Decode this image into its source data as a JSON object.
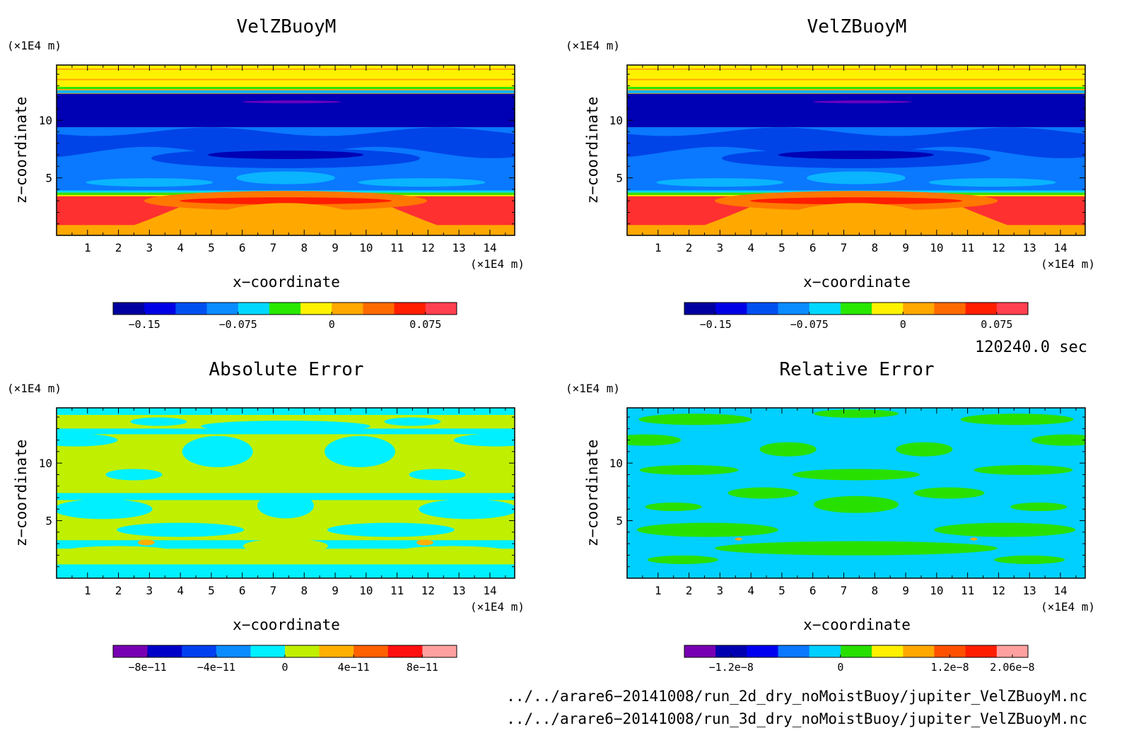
{
  "panels": [
    {
      "id": "p1",
      "title": "VelZBuoyM",
      "kind": "field",
      "z_unit": "(×1E4 m)",
      "x_unit": "(×1E4 m)",
      "xlabel": "x−coordinate",
      "ylabel": "z−coordinate",
      "x_ticks": [
        "1",
        "2",
        "3",
        "4",
        "5",
        "6",
        "7",
        "8",
        "9",
        "10",
        "11",
        "12",
        "13",
        "14"
      ],
      "z_ticks": [
        "5",
        "10"
      ],
      "colorbar": {
        "colors": [
          "#0000a0",
          "#0000e6",
          "#0050f0",
          "#0a8cff",
          "#00d8ff",
          "#28e800",
          "#fff200",
          "#ffa800",
          "#ff6a00",
          "#ff1e00",
          "#ff4050"
        ],
        "labels": [
          "−0.15",
          "−0.075",
          "0",
          "0.075"
        ]
      }
    },
    {
      "id": "p2",
      "title": "VelZBuoyM",
      "kind": "field",
      "z_unit": "(×1E4 m)",
      "x_unit": "(×1E4 m)",
      "xlabel": "x−coordinate",
      "ylabel": "z−coordinate",
      "x_ticks": [
        "1",
        "2",
        "3",
        "4",
        "5",
        "6",
        "7",
        "8",
        "9",
        "10",
        "11",
        "12",
        "13",
        "14"
      ],
      "z_ticks": [
        "5",
        "10"
      ],
      "colorbar": {
        "colors": [
          "#0000a0",
          "#0000e6",
          "#0050f0",
          "#0a8cff",
          "#00d8ff",
          "#28e800",
          "#fff200",
          "#ffa800",
          "#ff6a00",
          "#ff1e00",
          "#ff4050"
        ],
        "labels": [
          "−0.15",
          "−0.075",
          "0",
          "0.075"
        ]
      }
    },
    {
      "id": "p3",
      "title": "Absolute Error",
      "kind": "abs",
      "z_unit": "(×1E4 m)",
      "x_unit": "(×1E4 m)",
      "xlabel": "x−coordinate",
      "ylabel": "z−coordinate",
      "x_ticks": [
        "1",
        "2",
        "3",
        "4",
        "5",
        "6",
        "7",
        "8",
        "9",
        "10",
        "11",
        "12",
        "13",
        "14"
      ],
      "z_ticks": [
        "5",
        "10"
      ],
      "colorbar": {
        "colors": [
          "#7800b4",
          "#0000c8",
          "#0040f0",
          "#0a8cff",
          "#00f0ff",
          "#c0f000",
          "#ffb000",
          "#ff6000",
          "#ff1010",
          "#ffa0a0"
        ],
        "labels": [
          "−8e−11",
          "−4e−11",
          "0",
          "4e−11",
          "8e−11"
        ]
      }
    },
    {
      "id": "p4",
      "title": "Relative Error",
      "kind": "rel",
      "z_unit": "(×1E4 m)",
      "x_unit": "(×1E4 m)",
      "xlabel": "x−coordinate",
      "ylabel": "z−coordinate",
      "x_ticks": [
        "1",
        "2",
        "3",
        "4",
        "5",
        "6",
        "7",
        "8",
        "9",
        "10",
        "11",
        "12",
        "13",
        "14"
      ],
      "z_ticks": [
        "5",
        "10"
      ],
      "colorbar": {
        "colors": [
          "#7800b4",
          "#0000b0",
          "#0000f0",
          "#0a78ff",
          "#00d0ff",
          "#28e000",
          "#fff000",
          "#ffa800",
          "#ff5000",
          "#ff1e00",
          "#ffa0a0"
        ],
        "labels": [
          "−1.2e−8",
          "0",
          "1.2e−8",
          "2.06e−8"
        ]
      }
    }
  ],
  "time_label": "120240.0 sec",
  "files": [
    "../../arare6−20141008/run_2d_dry_noMoistBuoy/jupiter_VelZBuoyM.nc",
    "../../arare6−20141008/run_3d_dry_noMoistBuoy/jupiter_VelZBuoyM.nc"
  ],
  "chart_data": [
    {
      "type": "heatmap",
      "title": "VelZBuoyM",
      "xlabel": "x−coordinate",
      "ylabel": "z−coordinate",
      "x_unit": "(×1E4 m)",
      "z_unit": "(×1E4 m)",
      "xlim": [
        0,
        14.8
      ],
      "ylim": [
        0,
        14.8
      ],
      "legend_labels": [
        "−0.15",
        "−0.075",
        "0",
        "0.075"
      ]
    },
    {
      "type": "heatmap",
      "title": "VelZBuoyM",
      "xlabel": "x−coordinate",
      "ylabel": "z−coordinate",
      "x_unit": "(×1E4 m)",
      "z_unit": "(×1E4 m)",
      "xlim": [
        0,
        14.8
      ],
      "ylim": [
        0,
        14.8
      ],
      "legend_labels": [
        "−0.15",
        "−0.075",
        "0",
        "0.075"
      ]
    },
    {
      "type": "heatmap",
      "title": "Absolute Error",
      "xlabel": "x−coordinate",
      "ylabel": "z−coordinate",
      "x_unit": "(×1E4 m)",
      "z_unit": "(×1E4 m)",
      "xlim": [
        0,
        14.8
      ],
      "ylim": [
        0,
        14.8
      ],
      "legend_labels": [
        "−8e−11",
        "−4e−11",
        "0",
        "4e−11",
        "8e−11"
      ]
    },
    {
      "type": "heatmap",
      "title": "Relative Error",
      "xlabel": "x−coordinate",
      "ylabel": "z−coordinate",
      "x_unit": "(×1E4 m)",
      "z_unit": "(×1E4 m)",
      "xlim": [
        0,
        14.8
      ],
      "ylim": [
        0,
        14.8
      ],
      "legend_labels": [
        "−1.2e−8",
        "0",
        "1.2e−8",
        "2.06e−8"
      ]
    }
  ]
}
